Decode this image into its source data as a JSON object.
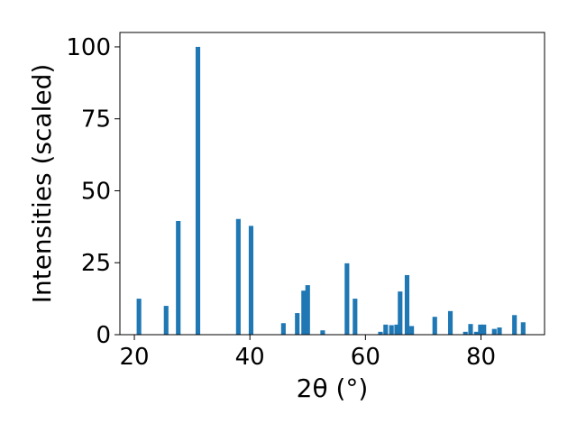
{
  "chart_data": {
    "type": "bar",
    "title": "",
    "xlabel": "2θ (°)",
    "ylabel": "Intensities (scaled)",
    "xlim": [
      17.5,
      91
    ],
    "ylim": [
      0,
      105
    ],
    "xticks": [
      "20",
      "40",
      "60",
      "80"
    ],
    "xtick_values": [
      20,
      40,
      60,
      80
    ],
    "yticks": [
      "0",
      "25",
      "50",
      "75",
      "100"
    ],
    "ytick_values": [
      0,
      25,
      50,
      75,
      100
    ],
    "grid": false,
    "bar_color": "#1f77b4",
    "bar_width": 0.8,
    "x": [
      20.8,
      25.5,
      27.6,
      31.0,
      38.0,
      40.2,
      45.8,
      48.2,
      49.3,
      50.0,
      52.6,
      56.8,
      58.2,
      62.6,
      63.5,
      64.5,
      65.4,
      66.0,
      67.2,
      68.0,
      72.0,
      74.7,
      77.3,
      78.2,
      79.2,
      79.9,
      80.5,
      82.3,
      83.2,
      85.8,
      87.3
    ],
    "values": [
      12.5,
      10.0,
      39.5,
      100.0,
      40.2,
      37.8,
      4.0,
      7.5,
      15.3,
      17.2,
      1.5,
      24.8,
      12.5,
      1.0,
      3.5,
      3.3,
      3.5,
      15.0,
      20.7,
      3.0,
      6.2,
      8.2,
      1.0,
      3.7,
      1.0,
      3.5,
      3.5,
      2.0,
      2.5,
      6.8,
      4.3
    ]
  }
}
